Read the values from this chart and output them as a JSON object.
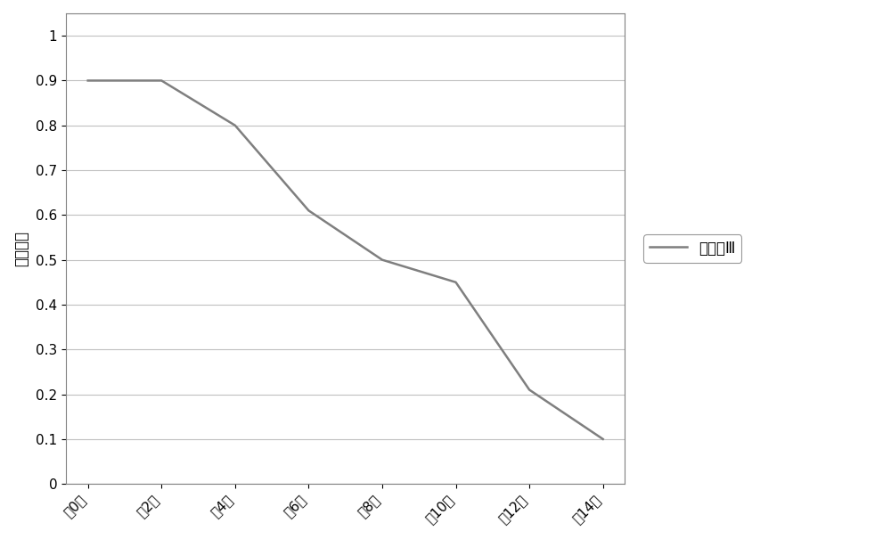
{
  "x_labels": [
    "第0天",
    "第2天",
    "第4天",
    "第6天",
    "第8天",
    "第10天",
    "第12天",
    "第14天"
  ],
  "x_data": [
    0,
    1,
    2,
    3,
    4,
    5,
    6,
    7
  ],
  "y_values": [
    0.9,
    0.9,
    0.8,
    0.61,
    0.5,
    0.45,
    0.21,
    0.1
  ],
  "line_color": "#7f7f7f",
  "line_width": 1.8,
  "legend_label": "稀释液Ⅲ",
  "ylabel": "精子活率",
  "yticks": [
    0,
    0.1,
    0.2,
    0.3,
    0.4,
    0.5,
    0.6,
    0.7,
    0.8,
    0.9,
    1
  ],
  "ylim": [
    0,
    1.05
  ],
  "background_color": "#ffffff",
  "grid_color": "#c0c0c0",
  "border_color": "#808080"
}
